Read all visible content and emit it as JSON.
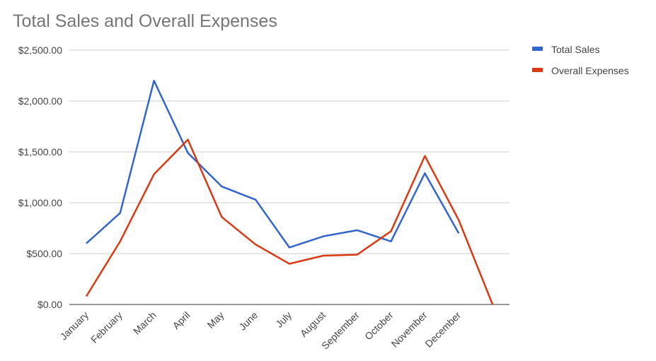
{
  "chart_data": {
    "type": "line",
    "title": "Total Sales and Overall Expenses",
    "categories": [
      "January",
      "February",
      "March",
      "April",
      "May",
      "June",
      "July",
      "August",
      "September",
      "October",
      "November",
      "December",
      null
    ],
    "series": [
      {
        "name": "Total Sales",
        "color": "#3366cc",
        "values": [
          600,
          900,
          2200,
          1490,
          1160,
          1030,
          560,
          670,
          730,
          620,
          1290,
          700,
          null
        ]
      },
      {
        "name": "Overall Expenses",
        "color": "#dc3912",
        "values": [
          80,
          620,
          1280,
          1620,
          860,
          590,
          400,
          480,
          490,
          720,
          1460,
          830,
          0
        ]
      }
    ],
    "ylim": [
      0,
      2500
    ],
    "yticks": [
      {
        "value": 0,
        "label": "$0.00"
      },
      {
        "value": 500,
        "label": "$500.00"
      },
      {
        "value": 1000,
        "label": "$1,000.00"
      },
      {
        "value": 1500,
        "label": "$1,500.00"
      },
      {
        "value": 2000,
        "label": "$2,000.00"
      },
      {
        "value": 2500,
        "label": "$2,500.00"
      }
    ],
    "grid": true,
    "legend": "right"
  }
}
